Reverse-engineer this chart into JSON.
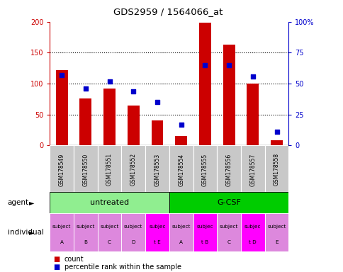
{
  "title": "GDS2959 / 1564066_at",
  "samples": [
    "GSM178549",
    "GSM178550",
    "GSM178551",
    "GSM178552",
    "GSM178553",
    "GSM178554",
    "GSM178555",
    "GSM178556",
    "GSM178557",
    "GSM178558"
  ],
  "counts": [
    122,
    76,
    92,
    65,
    40,
    15,
    198,
    163,
    100,
    8
  ],
  "percentile_ranks": [
    57,
    46,
    52,
    44,
    35,
    17,
    65,
    65,
    56,
    11
  ],
  "ylim_left": [
    0,
    200
  ],
  "ylim_right": [
    0,
    100
  ],
  "yticks_left": [
    0,
    50,
    100,
    150,
    200
  ],
  "yticks_right": [
    0,
    25,
    50,
    75,
    100
  ],
  "ytick_labels_right": [
    "0",
    "25",
    "50",
    "75",
    "100%"
  ],
  "ytick_labels_left": [
    "0",
    "50",
    "100",
    "150",
    "200"
  ],
  "bar_color": "#CC0000",
  "dot_color": "#0000CC",
  "bar_width": 0.5,
  "bg_color": "#FFFFFF",
  "sample_bg": "#C8C8C8",
  "untreated_color": "#90EE90",
  "gcsf_color": "#00CC00",
  "indiv_colors": [
    "#DD88DD",
    "#DD88DD",
    "#DD88DD",
    "#DD88DD",
    "#FF00FF",
    "#DD88DD",
    "#FF00FF",
    "#DD88DD",
    "#FF00FF",
    "#DD88DD"
  ],
  "indiv_labels_line1": [
    "subject",
    "subject",
    "subject",
    "subject",
    "subjec",
    "subject",
    "subjec",
    "subject",
    "subjec",
    "subject"
  ],
  "indiv_labels_line2": [
    "A",
    "B",
    "C",
    "D",
    "t E",
    "A",
    "t B",
    "C",
    "t D",
    "E"
  ],
  "legend_count_color": "#CC0000",
  "legend_dot_color": "#0000CC"
}
